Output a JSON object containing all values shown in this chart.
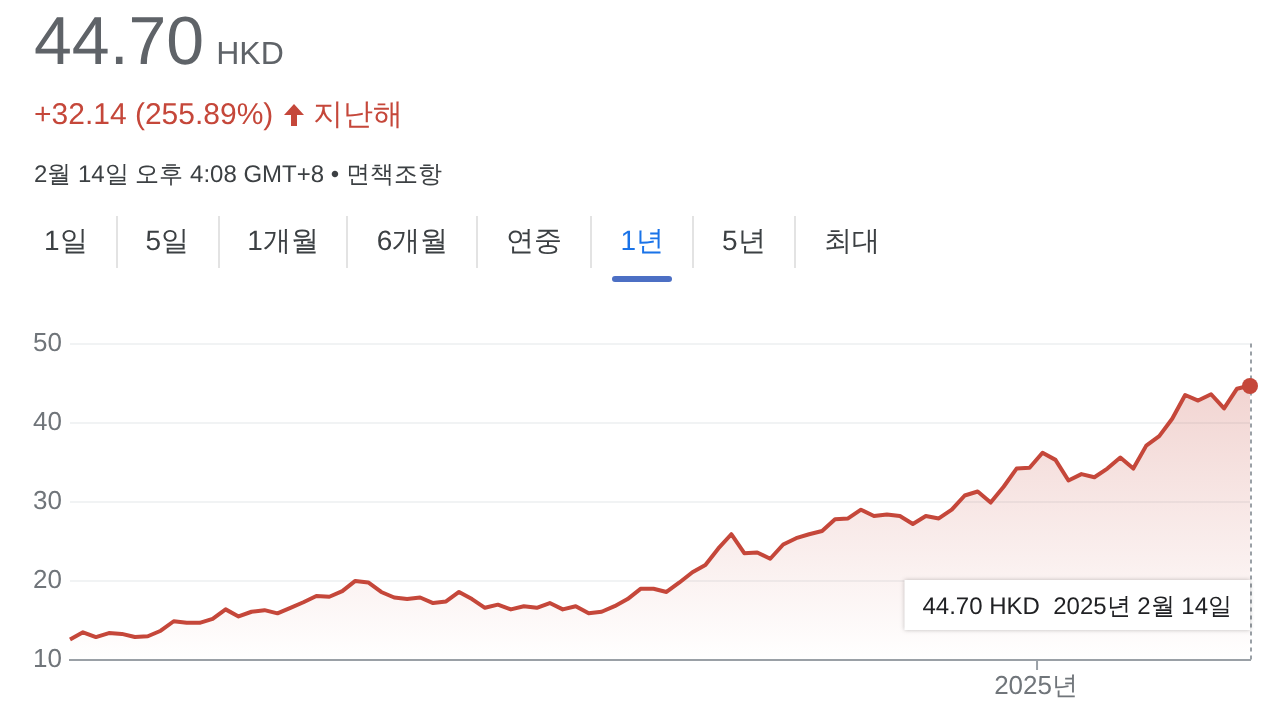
{
  "chart_data": {
    "type": "area",
    "title": "44.70",
    "annotations": [
      "HKD",
      "+32.14 (255.89%)",
      "지난해",
      "2월 14일 오후 4:08 GMT+8 • 면책조항",
      "1일",
      "5일",
      "1개월",
      "6개월",
      "연중",
      "1년",
      "5년",
      "최대",
      "2025년",
      "44.70 HKD  2025년 2월 14일"
    ],
    "categories": [
      null,
      null,
      null,
      null,
      null,
      null,
      null,
      null,
      null,
      null,
      null,
      null,
      null,
      null,
      null,
      null,
      null,
      null,
      null,
      null,
      null,
      null,
      null,
      null,
      null,
      null,
      null,
      null,
      null,
      null,
      null,
      null,
      null,
      null,
      null,
      null,
      null,
      null,
      null,
      null,
      null,
      null,
      null,
      null,
      null,
      null,
      null,
      null,
      null,
      null,
      null,
      null,
      null,
      null,
      null,
      null,
      null,
      null,
      null,
      null,
      null,
      null,
      null,
      null,
      null,
      null,
      null,
      null,
      null,
      null,
      null,
      null,
      null,
      null,
      null,
      null,
      null,
      null,
      null,
      null,
      null,
      null,
      null,
      null,
      null,
      null,
      null,
      null,
      null,
      null,
      null,
      null
    ],
    "series": [
      {
        "color": "#c5473a",
        "values": [
          12.6,
          13.5,
          12.9,
          13.4,
          13.3,
          12.9,
          13.0,
          13.7,
          14.9,
          14.7,
          14.7,
          15.2,
          16.4,
          15.5,
          16.1,
          16.3,
          15.9,
          16.6,
          17.3,
          18.1,
          18.0,
          18.7,
          20.0,
          19.8,
          18.6,
          17.9,
          17.7,
          17.9,
          17.2,
          17.4,
          18.6,
          17.7,
          16.6,
          17.0,
          16.4,
          16.8,
          16.6,
          17.2,
          16.4,
          16.8,
          15.9,
          16.1,
          16.8,
          17.7,
          19.0,
          19.0,
          18.6,
          19.8,
          21.1,
          22.0,
          24.1,
          25.9,
          23.5,
          23.6,
          22.8,
          24.6,
          25.4,
          25.9,
          26.3,
          27.8,
          27.9,
          29.0,
          28.2,
          28.4,
          28.2,
          27.2,
          28.2,
          27.9,
          29.0,
          30.8,
          31.3,
          29.9,
          31.9,
          34.2,
          34.3,
          36.2,
          35.3,
          32.7,
          33.5,
          33.1,
          34.2,
          35.6,
          34.2,
          37.1,
          38.3,
          40.5,
          43.5,
          42.8,
          43.6,
          41.8,
          44.3,
          44.7
        ]
      }
    ],
    "ylim": [
      10,
      50
    ],
    "yticks": [
      10,
      20,
      30,
      40,
      50
    ],
    "grid": "y",
    "legend": false,
    "marker": "none",
    "line_style": "solid"
  }
}
